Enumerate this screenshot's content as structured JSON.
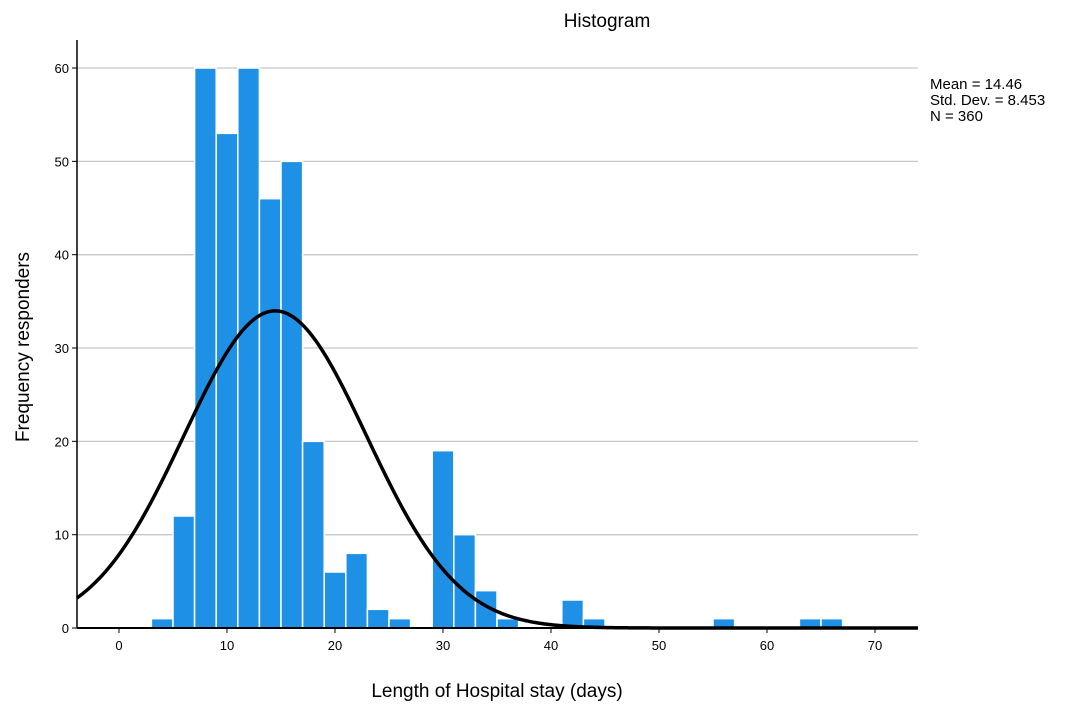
{
  "chart_data": {
    "type": "bar",
    "title": "Histogram",
    "xlabel": "Length of Hospital stay (days)",
    "ylabel": "Frequency responders",
    "xlim": [
      -4,
      74
    ],
    "ylim": [
      0,
      63
    ],
    "x_ticks": [
      0,
      10,
      20,
      30,
      40,
      50,
      60,
      70
    ],
    "y_ticks": [
      0,
      10,
      20,
      30,
      40,
      50,
      60
    ],
    "grid": "horizontal",
    "bin_width": 2,
    "bar_color": "#1e90e6",
    "bar_edge_color": "#ffffff",
    "curve_color": "#000000",
    "bins": [
      {
        "start": 3,
        "end": 5,
        "count": 1
      },
      {
        "start": 5,
        "end": 7,
        "count": 12
      },
      {
        "start": 7,
        "end": 9,
        "count": 60
      },
      {
        "start": 9,
        "end": 11,
        "count": 53
      },
      {
        "start": 11,
        "end": 13,
        "count": 60
      },
      {
        "start": 13,
        "end": 15,
        "count": 46
      },
      {
        "start": 15,
        "end": 17,
        "count": 50
      },
      {
        "start": 17,
        "end": 19,
        "count": 20
      },
      {
        "start": 19,
        "end": 21,
        "count": 6
      },
      {
        "start": 21,
        "end": 23,
        "count": 8
      },
      {
        "start": 23,
        "end": 25,
        "count": 2
      },
      {
        "start": 25,
        "end": 27,
        "count": 1
      },
      {
        "start": 29,
        "end": 31,
        "count": 19
      },
      {
        "start": 31,
        "end": 33,
        "count": 10
      },
      {
        "start": 33,
        "end": 35,
        "count": 4
      },
      {
        "start": 35,
        "end": 37,
        "count": 1
      },
      {
        "start": 41,
        "end": 43,
        "count": 3
      },
      {
        "start": 43,
        "end": 45,
        "count": 1
      },
      {
        "start": 55,
        "end": 57,
        "count": 1
      },
      {
        "start": 63,
        "end": 65,
        "count": 1
      },
      {
        "start": 65,
        "end": 67,
        "count": 1
      }
    ],
    "normal_curve": {
      "mean": 14.46,
      "std_dev": 8.453,
      "n": 360
    },
    "stats_legend": [
      "Mean = 14.46",
      "Std. Dev. = 8.453",
      "N = 360"
    ],
    "legend_position": "top-right"
  }
}
